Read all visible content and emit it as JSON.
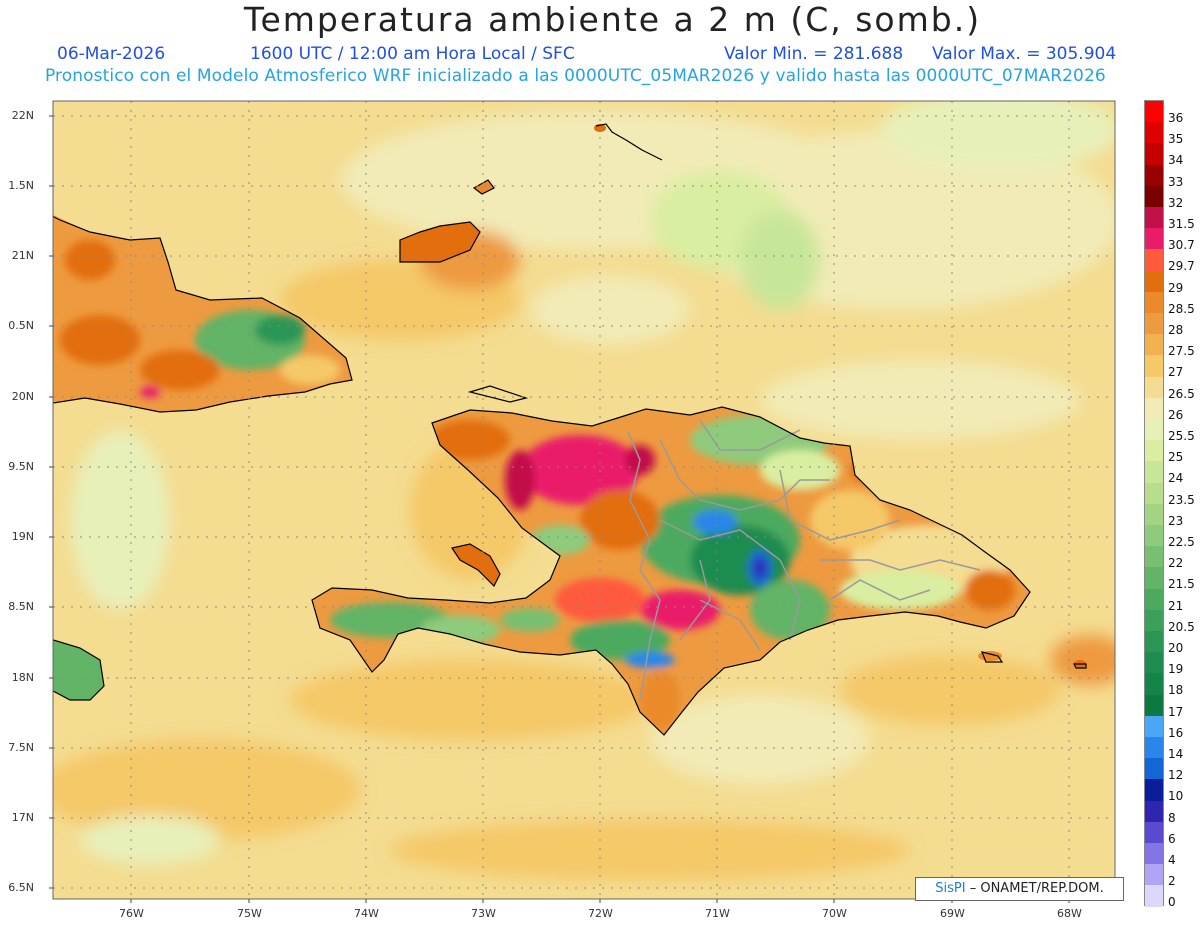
{
  "header": {
    "title": "Temperatura ambiente a 2 m (C, somb.)",
    "date": "06-Mar-2026",
    "time": "1600 UTC / 12:00 am Hora Local / SFC",
    "min_value": "Valor Min. = 281.688",
    "max_value": "Valor Max. = 305.904",
    "model_info": "Pronostico con el Modelo Atmosferico WRF inicializado a las 0000UTC_05MAR2026 y valido hasta las  0000UTC_07MAR2026"
  },
  "axes": {
    "lat_labels": [
      "22N",
      "1.5N",
      "21N",
      "0.5N",
      "20N",
      "9.5N",
      "19N",
      "8.5N",
      "18N",
      "7.5N",
      "17N",
      "6.5N"
    ],
    "lon_labels": [
      "76W",
      "75W",
      "74W",
      "73W",
      "72W",
      "71W",
      "70W",
      "69W",
      "68W"
    ]
  },
  "legend": {
    "levels": [
      {
        "label": "36",
        "color": "#ff0000"
      },
      {
        "label": "35",
        "color": "#e00000"
      },
      {
        "label": "34",
        "color": "#c40000"
      },
      {
        "label": "33",
        "color": "#9a0000"
      },
      {
        "label": "32",
        "color": "#7a0000"
      },
      {
        "label": "31.5",
        "color": "#c2104a"
      },
      {
        "label": "30.7",
        "color": "#ea1c6a"
      },
      {
        "label": "29.7",
        "color": "#ff5a3c"
      },
      {
        "label": "29",
        "color": "#e26e0e"
      },
      {
        "label": "28.5",
        "color": "#ea8a2a"
      },
      {
        "label": "28",
        "color": "#ee9a40"
      },
      {
        "label": "27.5",
        "color": "#f2b150"
      },
      {
        "label": "27",
        "color": "#f5c868"
      },
      {
        "label": "26.5",
        "color": "#f4dc90"
      },
      {
        "label": "26",
        "color": "#f2ebb6"
      },
      {
        "label": "25.5",
        "color": "#e8f0ba"
      },
      {
        "label": "25",
        "color": "#d9eea0"
      },
      {
        "label": "24",
        "color": "#c8e69a"
      },
      {
        "label": "23.5",
        "color": "#b6de8c"
      },
      {
        "label": "23",
        "color": "#a2d484"
      },
      {
        "label": "22.5",
        "color": "#8ecb7c"
      },
      {
        "label": "22",
        "color": "#78c070"
      },
      {
        "label": "21.5",
        "color": "#62b466"
      },
      {
        "label": "21",
        "color": "#4caa5e"
      },
      {
        "label": "20.5",
        "color": "#3aa05a"
      },
      {
        "label": "20",
        "color": "#2a9656"
      },
      {
        "label": "19",
        "color": "#1e8c50"
      },
      {
        "label": "18",
        "color": "#148448"
      },
      {
        "label": "17",
        "color": "#0c7a40"
      },
      {
        "label": "16",
        "color": "#4aa6f6"
      },
      {
        "label": "14",
        "color": "#2a86ea"
      },
      {
        "label": "12",
        "color": "#1466d6"
      },
      {
        "label": "10",
        "color": "#0a1e9a"
      },
      {
        "label": "8",
        "color": "#2e26b0"
      },
      {
        "label": "6",
        "color": "#5a4ad0"
      },
      {
        "label": "4",
        "color": "#8474e6"
      },
      {
        "label": "2",
        "color": "#b0a4f4"
      },
      {
        "label": "0",
        "color": "#dcd8fc"
      }
    ]
  },
  "credit": {
    "brand": "SisPI",
    "text": " – ONAMET/REP.DOM."
  },
  "colors": {
    "ocean": "#f4dc90",
    "ocean_warm": "#f5c868",
    "ocean_cool": "#f2ebb6",
    "land_hot": "#e26e0e",
    "land_very_hot": "#ea1c6a",
    "land_cool": "#4caa5e",
    "land_cold": "#2a86ea",
    "border": "#9a9a9a",
    "coast": "#000000"
  }
}
